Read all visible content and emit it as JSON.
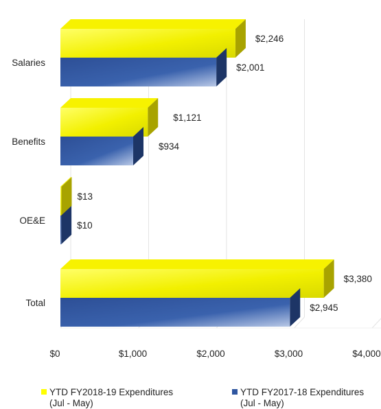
{
  "chart_data": {
    "type": "bar",
    "orientation": "horizontal",
    "style": "3d",
    "categories": [
      "Salaries",
      "Benefits",
      "OE&E",
      "Total"
    ],
    "series": [
      {
        "name": "YTD FY2018-19 Expenditures (Jul - May)",
        "name_line1": "YTD FY2018-19 Expenditures",
        "name_line2": "(Jul - May)",
        "color": "#ffff00",
        "values": [
          2246,
          1121,
          13,
          3380
        ],
        "labels": [
          "$2,246",
          "$1,121",
          "$13",
          "$3,380"
        ]
      },
      {
        "name": "YTD FY2017-18 Expenditures (Jul - May)",
        "name_line1": "YTD FY2017-18 Expenditures",
        "name_line2": "(Jul - May)",
        "color": "#2f56a0",
        "values": [
          2001,
          934,
          10,
          2945
        ],
        "labels": [
          "$2,001",
          "$934",
          "$10",
          "$2,945"
        ]
      }
    ],
    "xticks": [
      "$0",
      "$1,000",
      "$2,000",
      "$3,000",
      "$4,000"
    ],
    "xlim": [
      0,
      4000
    ],
    "grid": true,
    "legend": "bottom"
  }
}
